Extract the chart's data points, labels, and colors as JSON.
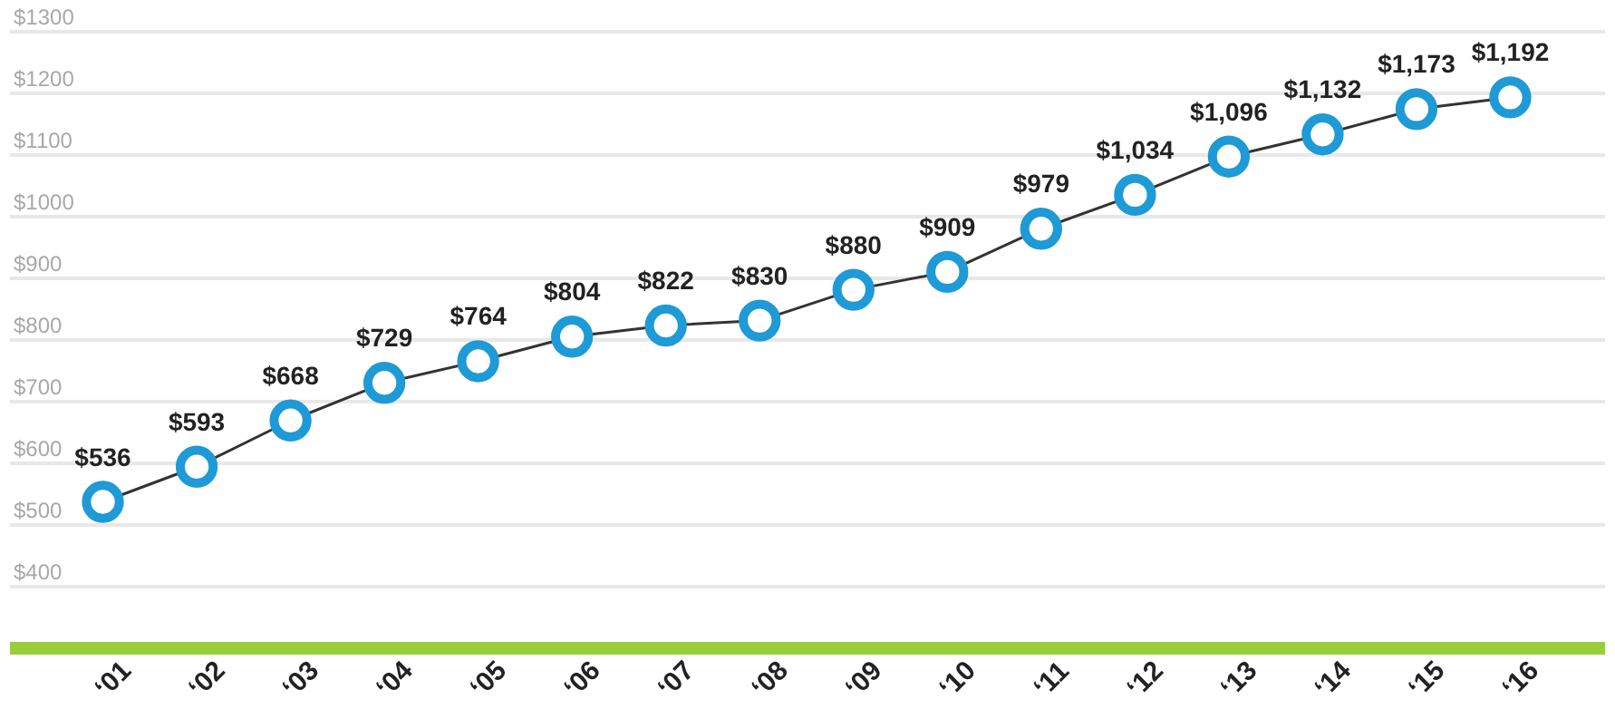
{
  "chart_data": {
    "type": "line",
    "categories": [
      "‘01",
      "‘02",
      "‘03",
      "‘04",
      "‘05",
      "‘06",
      "‘07",
      "‘08",
      "‘09",
      "‘10",
      "‘11",
      "‘12",
      "‘13",
      "‘14",
      "‘15",
      "‘16"
    ],
    "series": [
      {
        "color": "#1e9ad6",
        "values": [
          536,
          593,
          668,
          729,
          764,
          804,
          822,
          830,
          880,
          909,
          979,
          1034,
          1096,
          1132,
          1173,
          1192
        ],
        "value_labels": [
          "$536",
          "$593",
          "$668",
          "$729",
          "$764",
          "$804",
          "$822",
          "$830",
          "$880",
          "$909",
          "$979",
          "$1,034",
          "$1,096",
          "$1,132",
          "$1,173",
          "$1,192"
        ]
      }
    ],
    "ylim": [
      300,
      1300
    ],
    "yticks": [
      {
        "value": 400,
        "label": "$400"
      },
      {
        "value": 500,
        "label": "$500"
      },
      {
        "value": 600,
        "label": "$600"
      },
      {
        "value": 700,
        "label": "$700"
      },
      {
        "value": 800,
        "label": "$800"
      },
      {
        "value": 900,
        "label": "$900"
      },
      {
        "value": 1000,
        "label": "$1000"
      },
      {
        "value": 1100,
        "label": "$1100"
      },
      {
        "value": 1200,
        "label": "$1200"
      },
      {
        "value": 1300,
        "label": "$1300"
      }
    ],
    "grid": "y",
    "marker": "circle",
    "line_style": "solid"
  }
}
